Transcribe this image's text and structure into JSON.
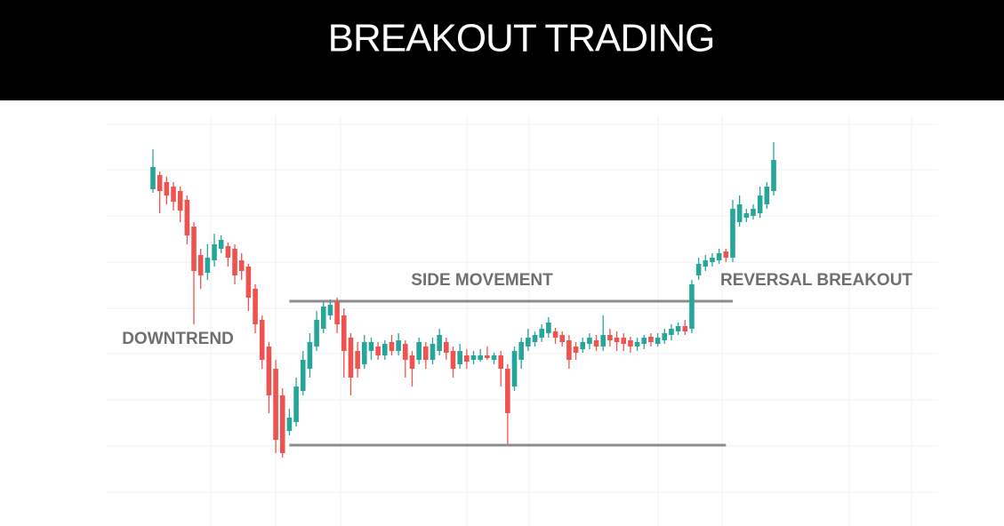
{
  "chart_data": {
    "type": "candlestick",
    "title": "BREAKOUT TRADING",
    "annotations": [
      "DOWNTREND",
      "SIDE MOVEMENT",
      "REVERSAL BREAKOUT"
    ],
    "up_color": "#26a69a",
    "down_color": "#ef5350",
    "level_color": "#8c8c8c",
    "ylim": [
      0,
      425
    ],
    "open": [
      342,
      358,
      350,
      345,
      340,
      330,
      300,
      268,
      248,
      262,
      275,
      278,
      275,
      262,
      255,
      230,
      195,
      165,
      140,
      110,
      70,
      80,
      115,
      140,
      165,
      185,
      200,
      215,
      200,
      175,
      160,
      145,
      160,
      165,
      155,
      170,
      160,
      168,
      155,
      150,
      165,
      150,
      160,
      170,
      160,
      145,
      155,
      150,
      150,
      155,
      150,
      155,
      140,
      120,
      150,
      165,
      170,
      175,
      180,
      182,
      178,
      172,
      165,
      162,
      168,
      172,
      165,
      178,
      175,
      175,
      172,
      165,
      168,
      176,
      168,
      172,
      178,
      182,
      188,
      185,
      245,
      255,
      260,
      262,
      272,
      265,
      305,
      310,
      312,
      315,
      325,
      340
    ],
    "high": [
      387,
      362,
      356,
      350,
      345,
      335,
      305,
      275,
      280,
      292,
      290,
      282,
      280,
      270,
      258,
      235,
      200,
      170,
      150,
      118,
      95,
      130,
      160,
      180,
      205,
      215,
      218,
      220,
      208,
      180,
      170,
      178,
      175,
      170,
      172,
      178,
      180,
      172,
      160,
      175,
      170,
      175,
      185,
      175,
      165,
      168,
      162,
      160,
      162,
      165,
      158,
      160,
      145,
      165,
      175,
      185,
      182,
      190,
      198,
      186,
      182,
      178,
      170,
      175,
      180,
      178,
      200,
      185,
      182,
      180,
      176,
      175,
      178,
      180,
      180,
      185,
      190,
      192,
      195,
      240,
      265,
      268,
      270,
      275,
      275,
      330,
      335,
      320,
      325,
      345,
      350,
      395
    ],
    "low": [
      338,
      315,
      325,
      318,
      305,
      280,
      190,
      230,
      240,
      255,
      270,
      255,
      235,
      240,
      205,
      180,
      140,
      90,
      45,
      40,
      65,
      75,
      110,
      130,
      160,
      180,
      195,
      180,
      130,
      110,
      130,
      140,
      150,
      150,
      150,
      155,
      155,
      130,
      120,
      145,
      140,
      145,
      155,
      150,
      130,
      140,
      140,
      145,
      148,
      150,
      145,
      120,
      55,
      115,
      140,
      160,
      165,
      170,
      175,
      168,
      165,
      140,
      150,
      158,
      162,
      160,
      160,
      165,
      160,
      160,
      158,
      160,
      162,
      165,
      165,
      168,
      172,
      178,
      178,
      180,
      240,
      250,
      255,
      258,
      260,
      260,
      300,
      305,
      308,
      310,
      320,
      335
    ],
    "close": [
      367,
      340,
      335,
      328,
      318,
      290,
      250,
      245,
      265,
      280,
      285,
      265,
      245,
      250,
      220,
      190,
      150,
      110,
      60,
      45,
      85,
      120,
      150,
      170,
      195,
      210,
      212,
      190,
      160,
      130,
      140,
      170,
      170,
      155,
      168,
      160,
      172,
      150,
      140,
      170,
      150,
      168,
      178,
      158,
      140,
      160,
      148,
      155,
      155,
      152,
      155,
      140,
      90,
      160,
      170,
      175,
      178,
      185,
      192,
      175,
      170,
      150,
      158,
      170,
      175,
      165,
      178,
      172,
      170,
      168,
      165,
      170,
      175,
      170,
      175,
      180,
      185,
      188,
      182,
      235,
      258,
      262,
      265,
      270,
      265,
      320,
      325,
      315,
      320,
      335,
      345,
      375
    ],
    "levels": [
      {
        "value": 216,
        "from": 20,
        "to": 85
      },
      {
        "value": 54,
        "from": 20,
        "to": 84
      }
    ]
  }
}
